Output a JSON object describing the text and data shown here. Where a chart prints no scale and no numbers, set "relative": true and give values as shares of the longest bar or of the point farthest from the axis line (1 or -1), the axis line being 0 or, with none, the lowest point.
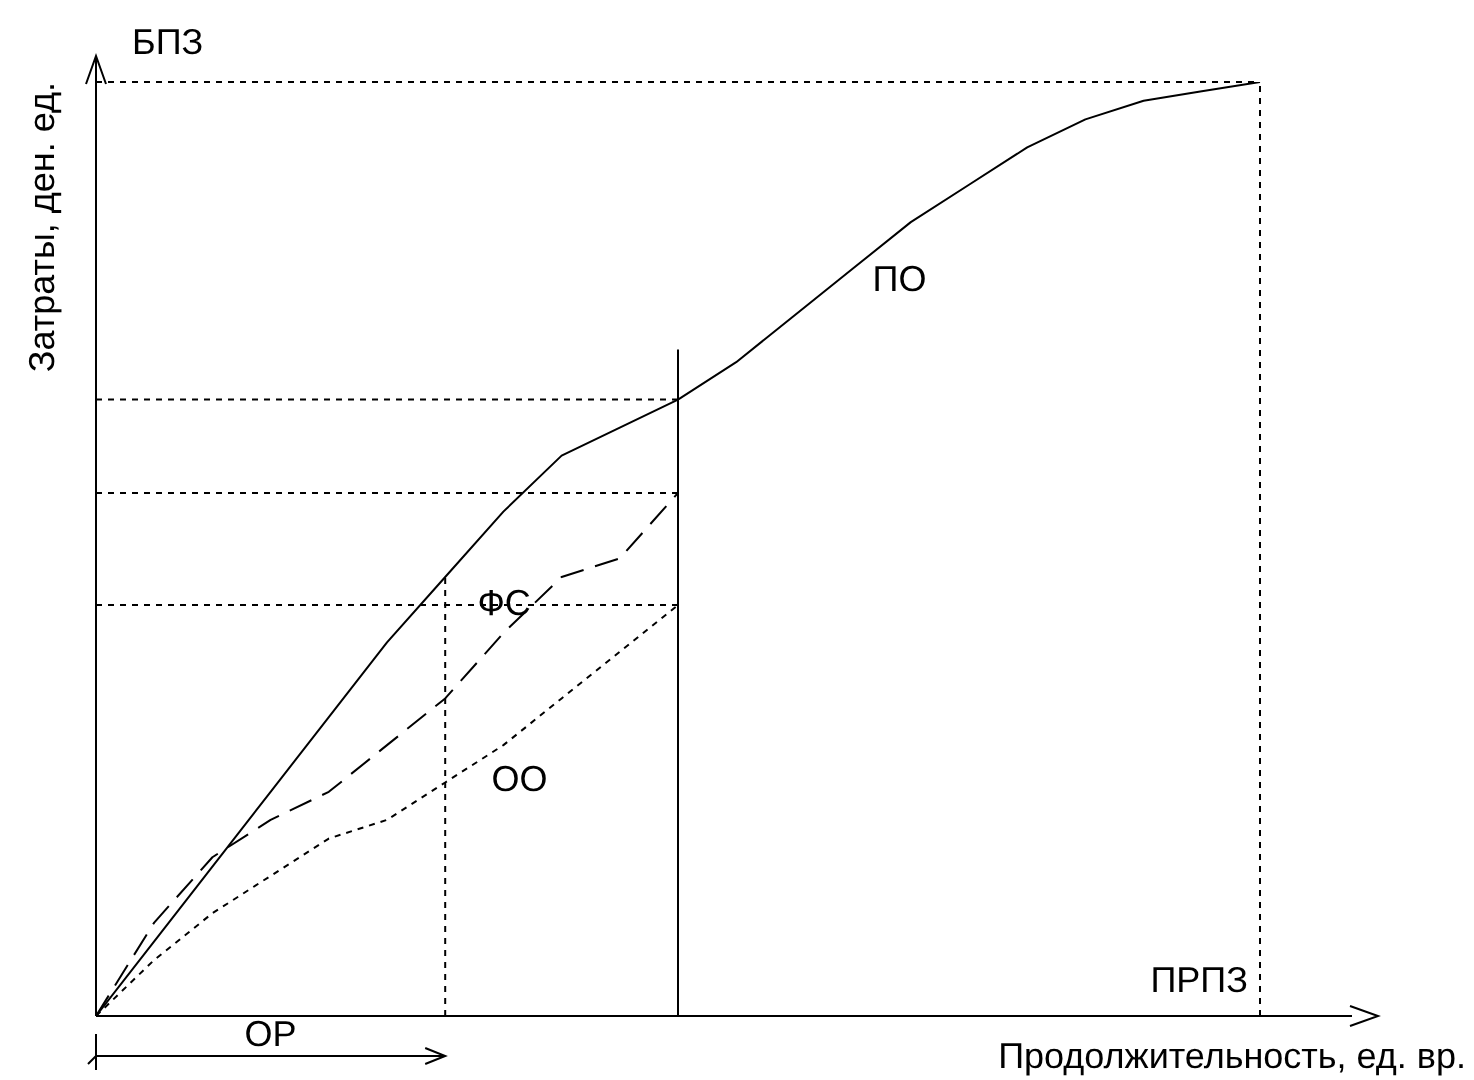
{
  "chart_data": {
    "type": "line",
    "relative": true,
    "legend": false,
    "marker": "none",
    "xlabel": "Продолжительность, ед. вр.",
    "ylabel": "Затраты, ден. ед.",
    "categories": [
      null,
      null,
      null,
      null,
      null,
      null,
      null,
      null,
      null,
      null,
      null,
      null,
      null,
      null,
      null,
      null,
      null,
      null,
      null,
      null,
      null
    ],
    "series": [
      {
        "name": "ПО",
        "color": "#000000",
        "line_style": "solid",
        "values": [
          0,
          0.08,
          0.16,
          0.24,
          0.32,
          0.4,
          0.47,
          0.54,
          0.6,
          0.63,
          0.66,
          0.7,
          0.75,
          0.8,
          0.85,
          0.89,
          0.93,
          0.96,
          0.98,
          0.99,
          1
        ]
      },
      {
        "name": "ФС",
        "color": "#000000",
        "line_style": "dashed",
        "values": [
          0,
          0.1,
          0.17,
          0.21,
          0.24,
          0.29,
          0.34,
          0.41,
          0.47,
          0.49,
          0.56,
          null,
          null,
          null,
          null,
          null,
          null,
          null,
          null,
          null,
          null
        ]
      },
      {
        "name": "ОО",
        "color": "#000000",
        "line_style": "dotted",
        "values": [
          0,
          0.06,
          0.11,
          0.15,
          0.19,
          0.21,
          0.25,
          0.29,
          0.34,
          0.39,
          0.44,
          null,
          null,
          null,
          null,
          null,
          null,
          null,
          null,
          null,
          null
        ]
      }
    ],
    "ref_lines": [
      {
        "axis": "y",
        "value": 1,
        "line_style": "dotted",
        "color": "#000000"
      },
      {
        "axis": "y",
        "value": 0.66,
        "line_style": "dotted",
        "color": "#000000"
      },
      {
        "axis": "y",
        "value": 0.56,
        "line_style": "dotted",
        "color": "#000000"
      },
      {
        "axis": "y",
        "value": 0.44,
        "line_style": "dotted",
        "color": "#000000"
      }
    ],
    "annotations": [
      "БПЗ",
      "ПРПЗ",
      "ОР"
    ]
  }
}
